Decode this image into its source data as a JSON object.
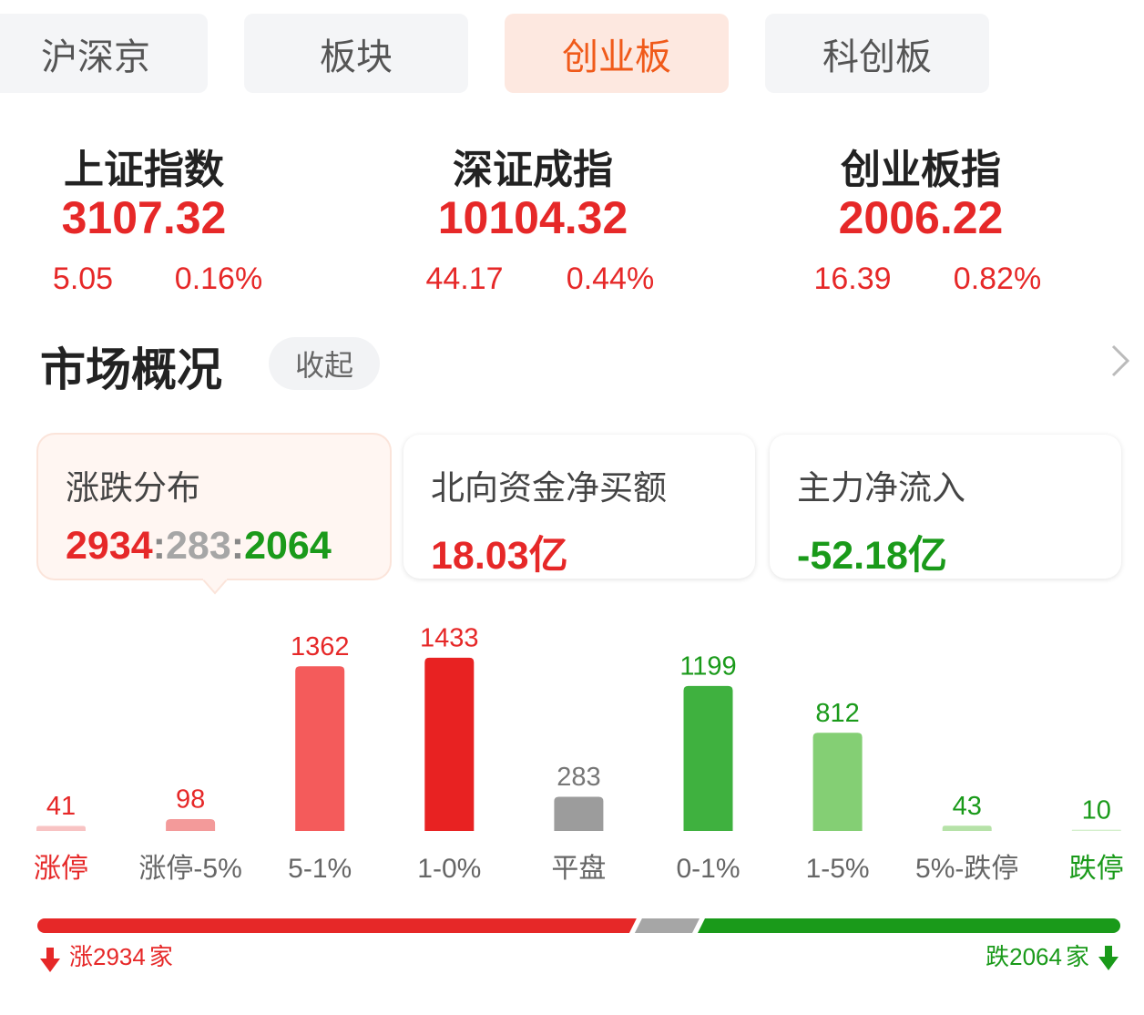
{
  "tabs": [
    {
      "label": "沪深京"
    },
    {
      "label": "板块"
    },
    {
      "label": "创业板"
    },
    {
      "label": "科创板"
    }
  ],
  "active_tab": 2,
  "indices": [
    {
      "name": "上证指数",
      "value": 3107.32,
      "change": 5.05,
      "change_pct": "0.16%"
    },
    {
      "name": "深证成指",
      "value": 10104.32,
      "change": 44.17,
      "change_pct": "0.44%"
    },
    {
      "name": "创业板指",
      "value": 2006.22,
      "change": 16.39,
      "change_pct": "0.82%"
    }
  ],
  "overview": {
    "title": "市场概况",
    "toggle": "收起"
  },
  "cards": [
    {
      "title": "涨跌分布"
    },
    {
      "title": "北向资金净买额",
      "value": "18.03亿",
      "color": "#e62828"
    },
    {
      "title": "主力净流入",
      "value": "-52.18亿",
      "color": "#1a9a1a"
    }
  ],
  "distribution": {
    "up": 2934,
    "flat": 283,
    "down": 2064,
    "separator": ":",
    "up_label": "涨",
    "down_label": "跌",
    "unit": "家",
    "colors": {
      "up": "#e62828",
      "flat": "#a6a6a6",
      "down": "#1a9a1a"
    }
  },
  "chart_data": {
    "type": "bar",
    "categories": [
      "涨停",
      "涨停-5%",
      "5-1%",
      "1-0%",
      "平盘",
      "0-1%",
      "1-5%",
      "5%-跌停",
      "跌停"
    ],
    "values": [
      41,
      98,
      1362,
      1433,
      283,
      1199,
      812,
      43,
      10
    ],
    "colors": [
      "#f8c3c3",
      "#f39a9a",
      "#f45b5b",
      "#e82222",
      "#9c9c9c",
      "#3fb13f",
      "#84cf74",
      "#b6e2a8",
      "#d5efcd"
    ],
    "value_label_colors": [
      "#e62828",
      "#e62828",
      "#e62828",
      "#e62828",
      "#777777",
      "#1a9a1a",
      "#1a9a1a",
      "#1a9a1a",
      "#1a9a1a"
    ],
    "category_label_colors": [
      "#e62828",
      "#666666",
      "#666666",
      "#666666",
      "#666666",
      "#666666",
      "#666666",
      "#666666",
      "#1a9a1a"
    ],
    "ylim": [
      0,
      1500
    ]
  }
}
